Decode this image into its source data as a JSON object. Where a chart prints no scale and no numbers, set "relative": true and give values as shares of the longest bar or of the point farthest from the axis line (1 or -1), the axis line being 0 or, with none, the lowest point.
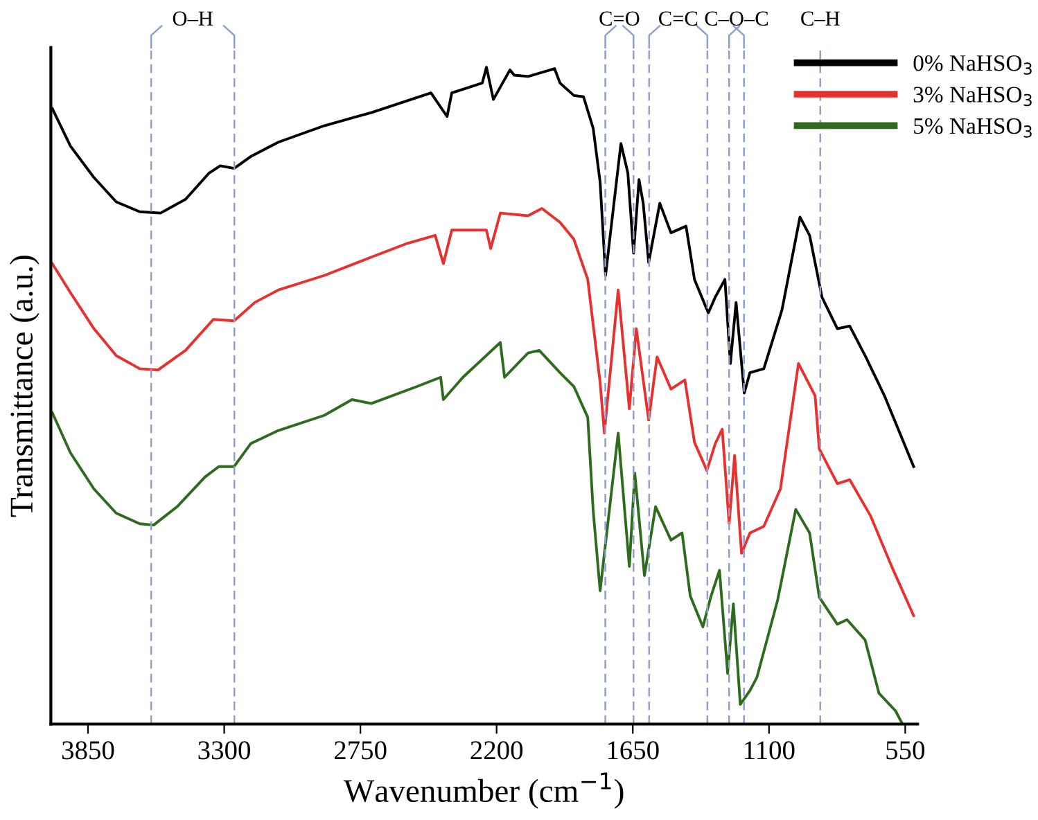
{
  "chart_data": {
    "type": "line",
    "relative": true,
    "xlabel": "Wavenumber (cm$^{−1}$)",
    "ylabel": "Transmittance (a.u.)",
    "xlim": [
      4000,
      500
    ],
    "xticks": [
      3850,
      3300,
      2750,
      2200,
      1650,
      1100,
      550
    ],
    "tick_labels": "x",
    "grid": false,
    "legend": "top right",
    "line_style": "solid",
    "marker": "none",
    "ref_lines": [
      {
        "axis": "x",
        "value": 3595,
        "label": "O–H",
        "color": "#8f9fd0",
        "line_style": "dashed"
      },
      {
        "axis": "x",
        "value": 3259,
        "label": null,
        "color": "#8f9fd0",
        "line_style": "dashed"
      },
      {
        "axis": "x",
        "value": 1761,
        "label": "C=O",
        "color": "#8f9fd0",
        "line_style": "dashed"
      },
      {
        "axis": "x",
        "value": 1647,
        "label": null,
        "color": "#8f9fd0",
        "line_style": "dashed"
      },
      {
        "axis": "x",
        "value": 1584,
        "label": "C=C",
        "color": "#8f9fd0",
        "line_style": "dashed"
      },
      {
        "axis": "x",
        "value": 1349,
        "label": null,
        "color": "#8f9fd0",
        "line_style": "dashed"
      },
      {
        "axis": "x",
        "value": 1261,
        "label": "C–O–C",
        "color": "#8f9fd0",
        "line_style": "dashed"
      },
      {
        "axis": "x",
        "value": 1201,
        "label": null,
        "color": "#8f9fd0",
        "line_style": "dashed"
      },
      {
        "axis": "x",
        "value": 893,
        "label": "C–H",
        "color": "#8f9fd0",
        "line_style": "dashed"
      }
    ],
    "series": [
      {
        "name": "0% NaHSO$_{3}$",
        "color": "#000000",
        "x": [
          3994,
          3921,
          3828,
          3736,
          3641,
          3557,
          3456,
          3361,
          3316,
          3260,
          3193,
          3081,
          2896,
          2706,
          2577,
          2465,
          2400,
          2381,
          2258,
          2241,
          2213,
          2146,
          2129,
          2073,
          1966,
          1944,
          1888,
          1849,
          1810,
          1782,
          1760,
          1737,
          1698,
          1670,
          1647,
          1625,
          1608,
          1586,
          1541,
          1496,
          1435,
          1401,
          1345,
          1317,
          1278,
          1256,
          1233,
          1200,
          1177,
          1121,
          1048,
          975,
          936,
          886,
          824,
          774,
          712,
          634,
          516
        ],
        "values": [
          0.937,
          0.88,
          0.833,
          0.795,
          0.78,
          0.778,
          0.799,
          0.839,
          0.85,
          0.846,
          0.864,
          0.886,
          0.911,
          0.931,
          0.947,
          0.961,
          0.925,
          0.961,
          0.976,
          1.0,
          0.951,
          0.996,
          0.988,
          0.986,
          0.998,
          0.976,
          0.957,
          0.955,
          0.907,
          0.825,
          0.683,
          0.758,
          0.884,
          0.839,
          0.717,
          0.829,
          0.793,
          0.703,
          0.793,
          0.748,
          0.758,
          0.677,
          0.626,
          0.65,
          0.677,
          0.549,
          0.642,
          0.504,
          0.535,
          0.541,
          0.63,
          0.772,
          0.744,
          0.65,
          0.602,
          0.606,
          0.561,
          0.5,
          0.392
        ]
      },
      {
        "name": "3% NaHSO$_{3}$",
        "color": "#e8312f",
        "x": [
          3994,
          3921,
          3826,
          3736,
          3641,
          3568,
          3456,
          3344,
          3260,
          3176,
          3081,
          2896,
          2706,
          2560,
          2448,
          2415,
          2381,
          2241,
          2224,
          2185,
          2073,
          2017,
          1944,
          1888,
          1832,
          1782,
          1765,
          1709,
          1664,
          1636,
          1586,
          1552,
          1496,
          1440,
          1401,
          1351,
          1317,
          1289,
          1261,
          1239,
          1211,
          1177,
          1121,
          1054,
          981,
          914,
          897,
          824,
          774,
          690,
          600,
          516
        ],
        "values": [
          0.701,
          0.657,
          0.602,
          0.561,
          0.541,
          0.539,
          0.569,
          0.616,
          0.614,
          0.642,
          0.661,
          0.683,
          0.711,
          0.732,
          0.744,
          0.701,
          0.752,
          0.752,
          0.724,
          0.778,
          0.774,
          0.785,
          0.764,
          0.738,
          0.677,
          0.52,
          0.443,
          0.661,
          0.48,
          0.602,
          0.463,
          0.559,
          0.51,
          0.524,
          0.429,
          0.386,
          0.427,
          0.449,
          0.305,
          0.409,
          0.26,
          0.291,
          0.301,
          0.358,
          0.549,
          0.5,
          0.419,
          0.366,
          0.372,
          0.317,
          0.236,
          0.165
        ]
      },
      {
        "name": "5% NaHSO$_{3}$",
        "color": "#2e6b1f",
        "x": [
          3994,
          3921,
          3826,
          3736,
          3641,
          3585,
          3490,
          3378,
          3322,
          3260,
          3193,
          3081,
          2896,
          2784,
          2706,
          2521,
          2426,
          2415,
          2336,
          2185,
          2168,
          2073,
          2028,
          1944,
          1888,
          1832,
          1810,
          1782,
          1709,
          1664,
          1642,
          1603,
          1558,
          1496,
          1451,
          1418,
          1367,
          1334,
          1300,
          1267,
          1244,
          1216,
          1177,
          1149,
          1065,
          992,
          936,
          897,
          824,
          785,
          712,
          656,
          589,
          561
        ],
        "values": [
          0.474,
          0.413,
          0.358,
          0.321,
          0.305,
          0.303,
          0.331,
          0.376,
          0.392,
          0.392,
          0.427,
          0.447,
          0.47,
          0.494,
          0.488,
          0.514,
          0.528,
          0.494,
          0.528,
          0.581,
          0.528,
          0.565,
          0.569,
          0.535,
          0.514,
          0.467,
          0.325,
          0.203,
          0.443,
          0.24,
          0.382,
          0.226,
          0.331,
          0.28,
          0.291,
          0.195,
          0.148,
          0.195,
          0.234,
          0.077,
          0.183,
          0.03,
          0.051,
          0.071,
          0.189,
          0.327,
          0.291,
          0.193,
          0.152,
          0.159,
          0.128,
          0.047,
          0.02,
          0.0
        ]
      }
    ]
  }
}
